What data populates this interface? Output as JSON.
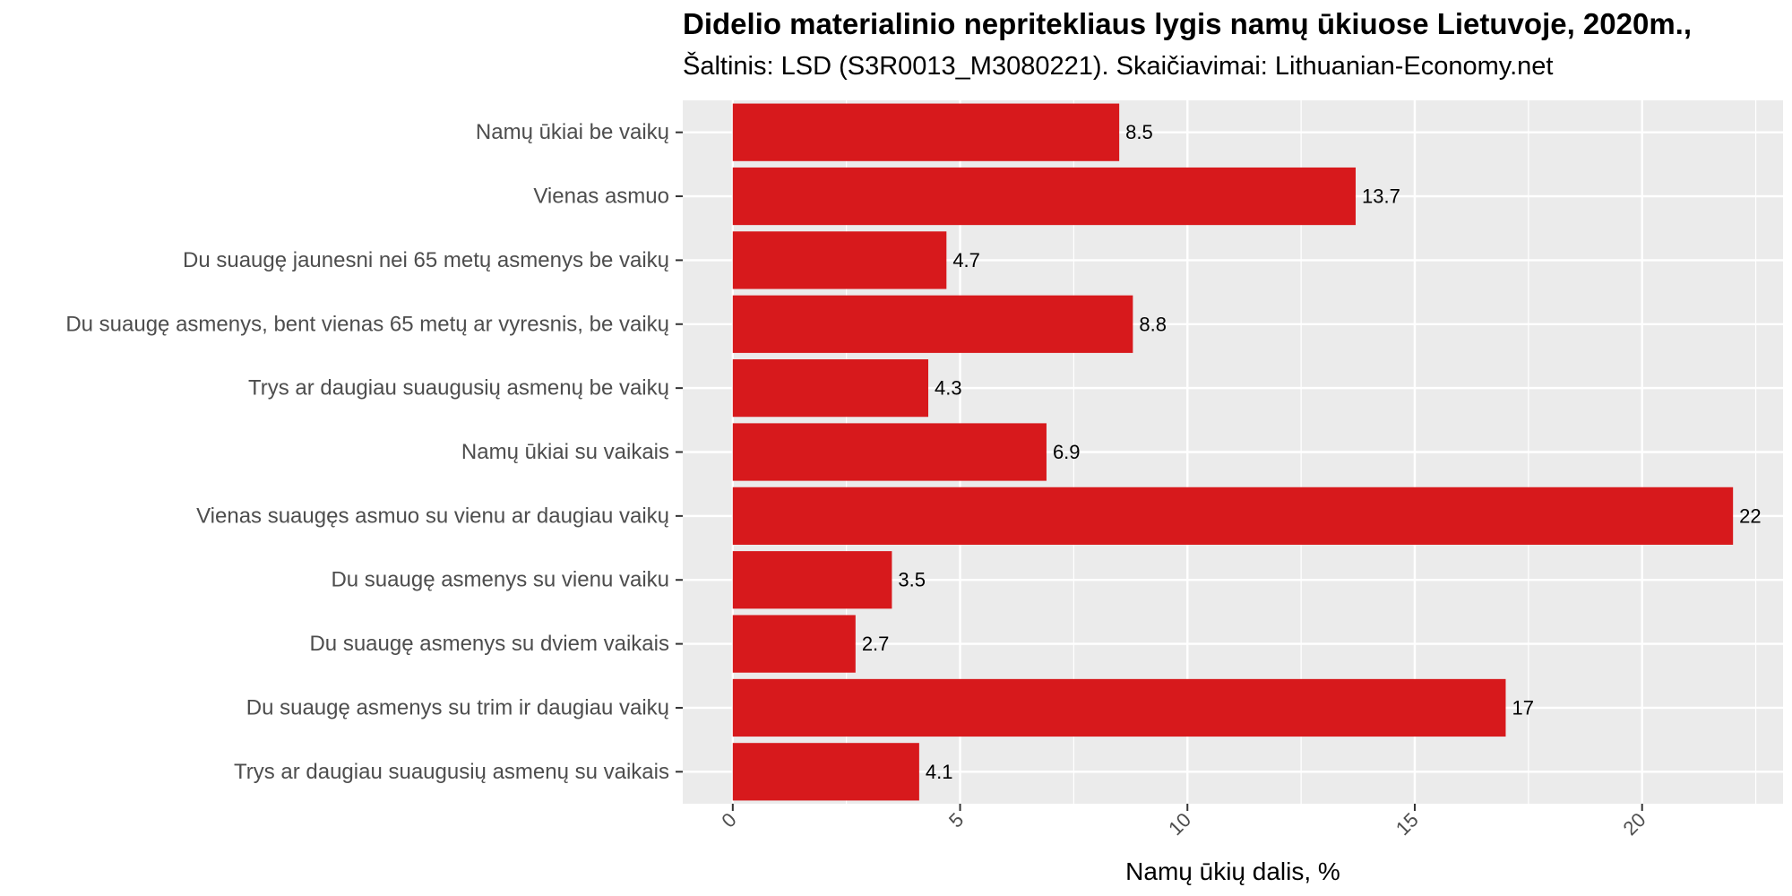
{
  "chart_data": {
    "type": "bar",
    "orientation": "horizontal",
    "title": "Didelio materialinio nepritekliaus lygis namų ūkiuose Lietuvoje, 2020m.,",
    "subtitle": "Šaltinis: LSD (S3R0013_M3080221). Skaičiavimai: Lithuanian-Economy.net",
    "xlabel": "Namų ūkių dalis, %",
    "ylabel": "",
    "xlim": [
      -1.1,
      23.1
    ],
    "xticks": [
      0,
      5,
      10,
      15,
      20
    ],
    "grid": true,
    "bar_color": "#d7191c",
    "panel_color": "#ebebeb",
    "categories": [
      "Namų ūkiai be vaikų",
      "Vienas asmuo",
      "Du suaugę jaunesni nei 65 metų asmenys be vaikų",
      "Du suaugę asmenys, bent vienas 65 metų ar vyresnis, be vaikų",
      "Trys ar daugiau suaugusių asmenų be vaikų",
      "Namų ūkiai su vaikais",
      "Vienas suaugęs asmuo su vienu ar daugiau vaikų",
      "Du suaugę asmenys su vienu vaiku",
      "Du suaugę asmenys su dviem vaikais",
      "Du suaugę asmenys su trim ir daugiau vaikų",
      "Trys ar daugiau suaugusių asmenų su vaikais"
    ],
    "values": [
      8.5,
      13.7,
      4.7,
      8.8,
      4.3,
      6.9,
      22,
      3.5,
      2.7,
      17,
      4.1
    ]
  }
}
